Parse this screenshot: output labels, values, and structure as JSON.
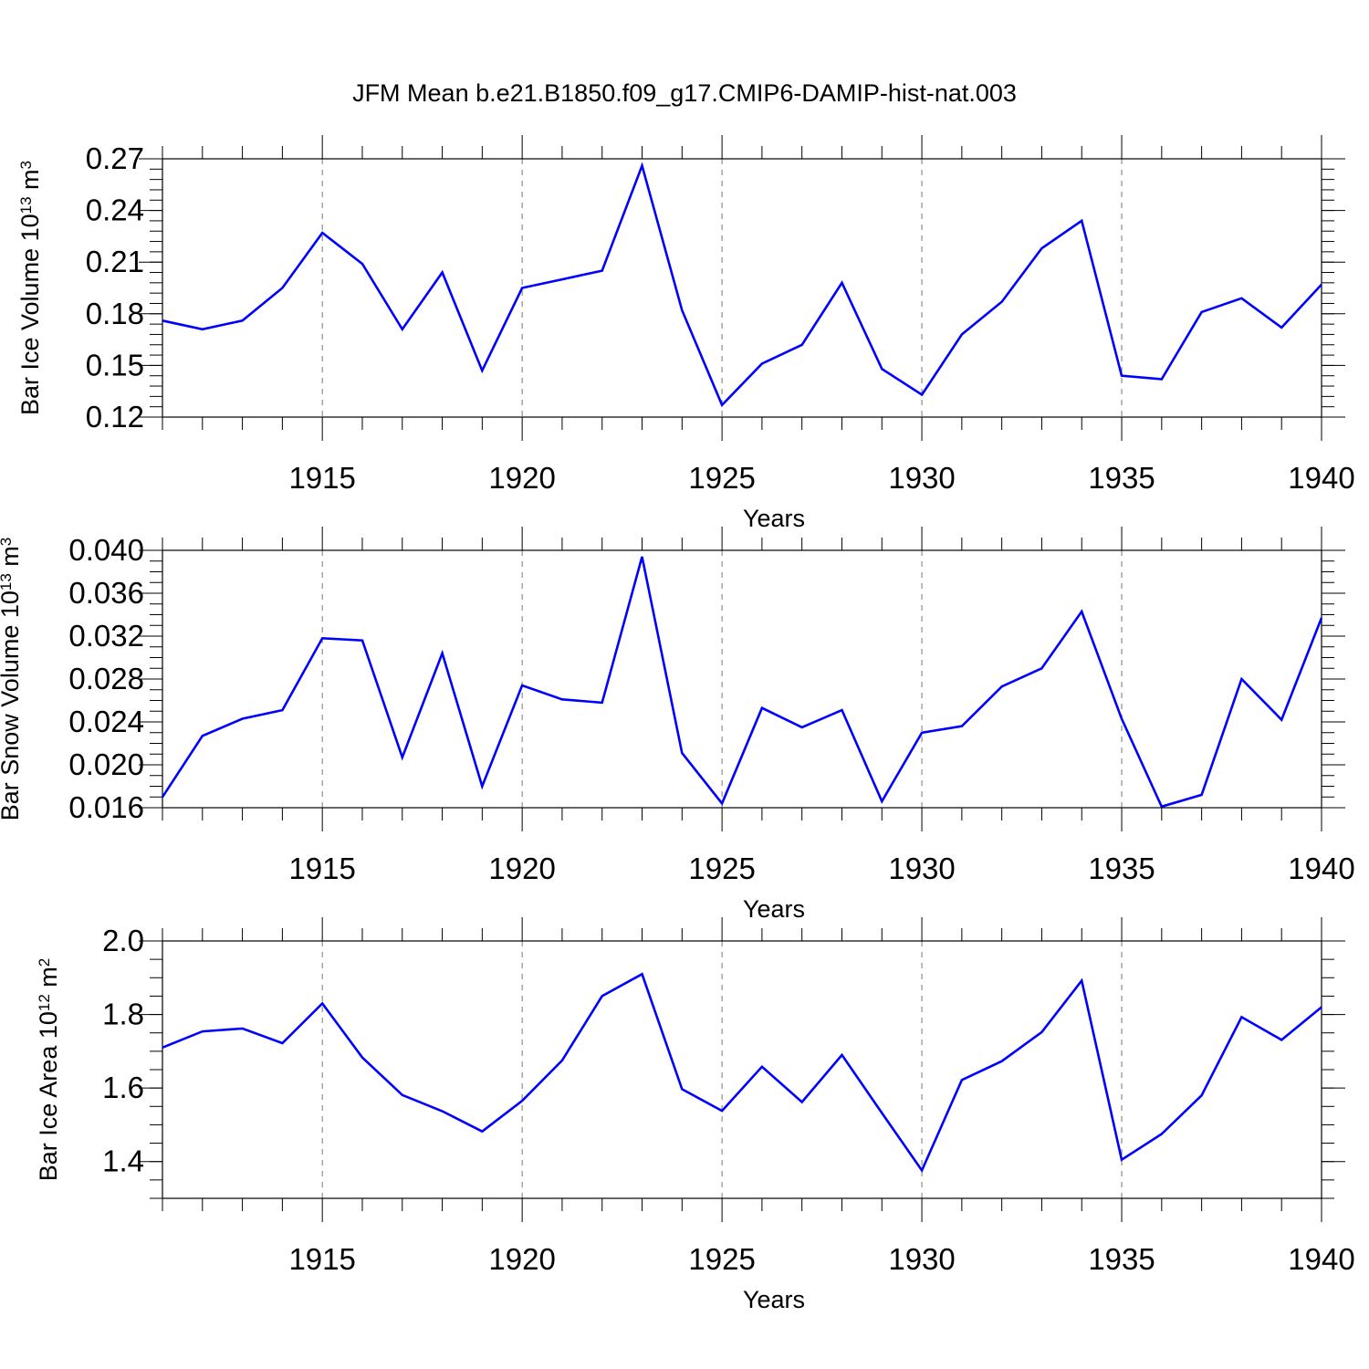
{
  "title": "JFM Mean b.e21.B1850.f09_g17.CMIP6-DAMIP-hist-nat.003",
  "colors": {
    "line": "#0000ff",
    "axis": "#000000",
    "grid": "#777777"
  },
  "chart_data": [
    {
      "type": "line",
      "name": "ice-volume",
      "ylabel": {
        "base": "Bar Ice Volume 10",
        "exp": "13",
        "unit": " m",
        "unit_exp": "3"
      },
      "xlabel": "Years",
      "xlim": [
        1911,
        1940
      ],
      "ylim": [
        0.12,
        0.27
      ],
      "yticks": [
        0.12,
        0.15,
        0.18,
        0.21,
        0.24,
        0.27
      ],
      "ytick_labels": [
        "0.12",
        "0.15",
        "0.18",
        "0.21",
        "0.24",
        "0.27"
      ],
      "yminor": 0.006,
      "xticks": [
        1915,
        1920,
        1925,
        1930,
        1935,
        1940
      ],
      "xtick_labels": [
        "1915",
        "1920",
        "1925",
        "1930",
        "1935",
        "1940"
      ],
      "grid": "dashed-vertical-at-major-x",
      "x": [
        1911,
        1912,
        1913,
        1914,
        1915,
        1916,
        1917,
        1918,
        1919,
        1920,
        1921,
        1922,
        1923,
        1924,
        1925,
        1926,
        1927,
        1928,
        1929,
        1930,
        1931,
        1932,
        1933,
        1934,
        1935,
        1936,
        1937,
        1938,
        1939,
        1940
      ],
      "values": [
        0.176,
        0.171,
        0.176,
        0.195,
        0.227,
        0.209,
        0.171,
        0.204,
        0.147,
        0.195,
        0.2,
        0.205,
        0.266,
        0.182,
        0.127,
        0.151,
        0.162,
        0.198,
        0.148,
        0.133,
        0.168,
        0.187,
        0.218,
        0.234,
        0.144,
        0.142,
        0.181,
        0.189,
        0.172,
        0.197
      ]
    },
    {
      "type": "line",
      "name": "snow-volume",
      "ylabel": {
        "base": "Bar Snow Volume 10",
        "exp": "13",
        "unit": " m",
        "unit_exp": "3"
      },
      "xlabel": "Years",
      "xlim": [
        1911,
        1940
      ],
      "ylim": [
        0.016,
        0.04
      ],
      "yticks": [
        0.016,
        0.02,
        0.024,
        0.028,
        0.032,
        0.036,
        0.04
      ],
      "ytick_labels": [
        "0.016",
        "0.020",
        "0.024",
        "0.028",
        "0.032",
        "0.036",
        "0.040"
      ],
      "yminor": 0.001,
      "xticks": [
        1915,
        1920,
        1925,
        1930,
        1935,
        1940
      ],
      "xtick_labels": [
        "1915",
        "1920",
        "1925",
        "1930",
        "1935",
        "1940"
      ],
      "grid": "dashed-vertical-at-major-x",
      "x": [
        1911,
        1912,
        1913,
        1914,
        1915,
        1916,
        1917,
        1918,
        1919,
        1920,
        1921,
        1922,
        1923,
        1924,
        1925,
        1926,
        1927,
        1928,
        1929,
        1930,
        1931,
        1932,
        1933,
        1934,
        1935,
        1936,
        1937,
        1938,
        1939,
        1940
      ],
      "values": [
        0.017,
        0.0227,
        0.0243,
        0.0251,
        0.0318,
        0.0316,
        0.0207,
        0.0304,
        0.018,
        0.0274,
        0.0261,
        0.0258,
        0.0394,
        0.0211,
        0.0164,
        0.0253,
        0.0235,
        0.0251,
        0.0166,
        0.023,
        0.0236,
        0.0273,
        0.029,
        0.0343,
        0.0243,
        0.0161,
        0.0172,
        0.028,
        0.0242,
        0.0337
      ]
    },
    {
      "type": "line",
      "name": "ice-area",
      "ylabel": {
        "base": "Bar Ice Area 10",
        "exp": "12",
        "unit": " m",
        "unit_exp": "2"
      },
      "xlabel": "Years",
      "xlim": [
        1911,
        1940
      ],
      "ylim": [
        1.3,
        2.0
      ],
      "yticks": [
        1.4,
        1.6,
        1.8,
        2.0
      ],
      "ytick_labels": [
        "1.4",
        "1.6",
        "1.8",
        "2.0"
      ],
      "yminor": 0.05,
      "xticks": [
        1915,
        1920,
        1925,
        1930,
        1935,
        1940
      ],
      "xtick_labels": [
        "1915",
        "1920",
        "1925",
        "1930",
        "1935",
        "1940"
      ],
      "grid": "dashed-vertical-at-major-x",
      "x": [
        1911,
        1912,
        1913,
        1914,
        1915,
        1916,
        1917,
        1918,
        1919,
        1920,
        1921,
        1922,
        1923,
        1924,
        1925,
        1926,
        1927,
        1928,
        1929,
        1930,
        1931,
        1932,
        1933,
        1934,
        1935,
        1936,
        1937,
        1938,
        1939,
        1940
      ],
      "values": [
        1.71,
        1.754,
        1.762,
        1.722,
        1.83,
        1.683,
        1.581,
        1.537,
        1.482,
        1.565,
        1.675,
        1.85,
        1.91,
        1.597,
        1.538,
        1.658,
        1.562,
        1.69,
        1.532,
        1.376,
        1.622,
        1.673,
        1.752,
        1.892,
        1.405,
        1.475,
        1.58,
        1.793,
        1.731,
        1.82
      ]
    }
  ]
}
